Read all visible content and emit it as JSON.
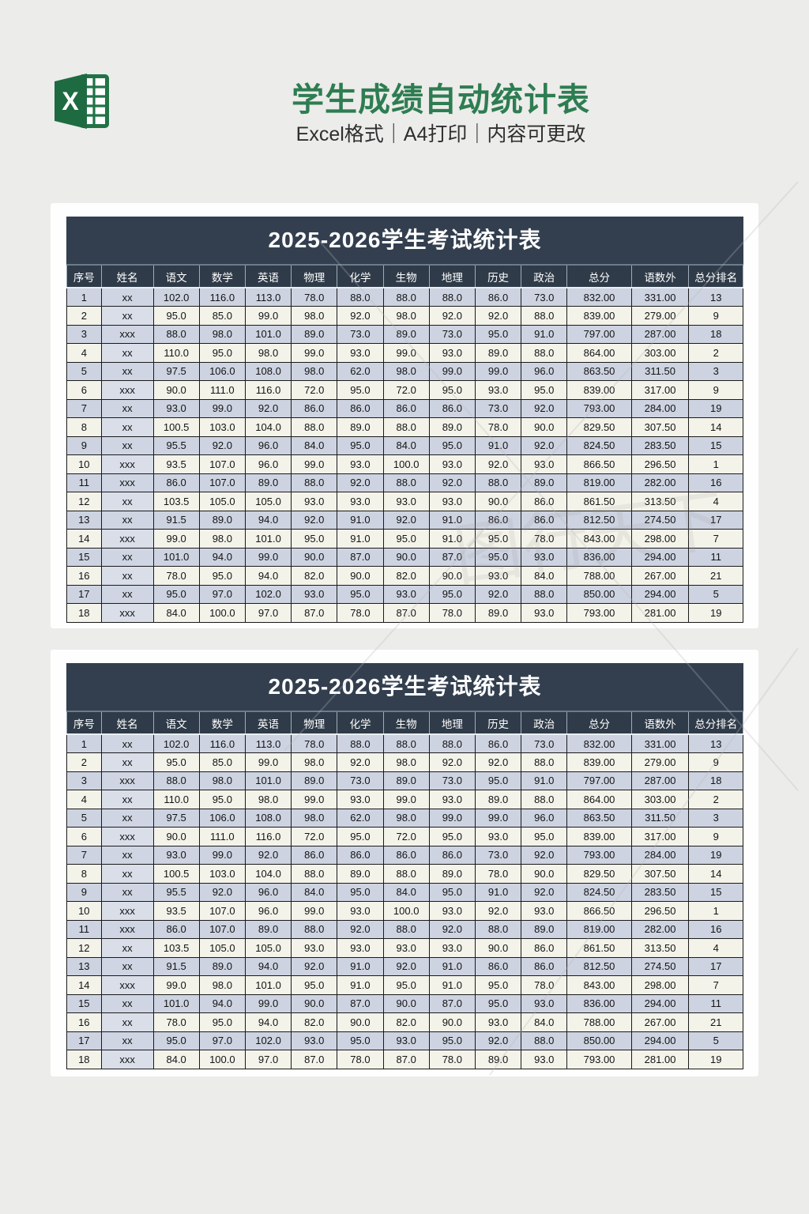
{
  "header": {
    "logo_letter": "X",
    "title": "学生成绩自动统计表",
    "subtitle": "Excel格式｜A4打印｜内容可更改"
  },
  "table": {
    "title": "2025-2026学生考试统计表",
    "columns": [
      "序号",
      "姓名",
      "语文",
      "数学",
      "英语",
      "物理",
      "化学",
      "生物",
      "地理",
      "历史",
      "政治",
      "总分",
      "语数外",
      "总分排名"
    ],
    "rows": [
      [
        "1",
        "xx",
        "102.0",
        "116.0",
        "113.0",
        "78.0",
        "88.0",
        "88.0",
        "88.0",
        "86.0",
        "73.0",
        "832.00",
        "331.00",
        "13"
      ],
      [
        "2",
        "xx",
        "95.0",
        "85.0",
        "99.0",
        "98.0",
        "92.0",
        "98.0",
        "92.0",
        "92.0",
        "88.0",
        "839.00",
        "279.00",
        "9"
      ],
      [
        "3",
        "xxx",
        "88.0",
        "98.0",
        "101.0",
        "89.0",
        "73.0",
        "89.0",
        "73.0",
        "95.0",
        "91.0",
        "797.00",
        "287.00",
        "18"
      ],
      [
        "4",
        "xx",
        "110.0",
        "95.0",
        "98.0",
        "99.0",
        "93.0",
        "99.0",
        "93.0",
        "89.0",
        "88.0",
        "864.00",
        "303.00",
        "2"
      ],
      [
        "5",
        "xx",
        "97.5",
        "106.0",
        "108.0",
        "98.0",
        "62.0",
        "98.0",
        "99.0",
        "99.0",
        "96.0",
        "863.50",
        "311.50",
        "3"
      ],
      [
        "6",
        "xxx",
        "90.0",
        "111.0",
        "116.0",
        "72.0",
        "95.0",
        "72.0",
        "95.0",
        "93.0",
        "95.0",
        "839.00",
        "317.00",
        "9"
      ],
      [
        "7",
        "xx",
        "93.0",
        "99.0",
        "92.0",
        "86.0",
        "86.0",
        "86.0",
        "86.0",
        "73.0",
        "92.0",
        "793.00",
        "284.00",
        "19"
      ],
      [
        "8",
        "xx",
        "100.5",
        "103.0",
        "104.0",
        "88.0",
        "89.0",
        "88.0",
        "89.0",
        "78.0",
        "90.0",
        "829.50",
        "307.50",
        "14"
      ],
      [
        "9",
        "xx",
        "95.5",
        "92.0",
        "96.0",
        "84.0",
        "95.0",
        "84.0",
        "95.0",
        "91.0",
        "92.0",
        "824.50",
        "283.50",
        "15"
      ],
      [
        "10",
        "xxx",
        "93.5",
        "107.0",
        "96.0",
        "99.0",
        "93.0",
        "100.0",
        "93.0",
        "92.0",
        "93.0",
        "866.50",
        "296.50",
        "1"
      ],
      [
        "11",
        "xxx",
        "86.0",
        "107.0",
        "89.0",
        "88.0",
        "92.0",
        "88.0",
        "92.0",
        "88.0",
        "89.0",
        "819.00",
        "282.00",
        "16"
      ],
      [
        "12",
        "xx",
        "103.5",
        "105.0",
        "105.0",
        "93.0",
        "93.0",
        "93.0",
        "93.0",
        "90.0",
        "86.0",
        "861.50",
        "313.50",
        "4"
      ],
      [
        "13",
        "xx",
        "91.5",
        "89.0",
        "94.0",
        "92.0",
        "91.0",
        "92.0",
        "91.0",
        "86.0",
        "86.0",
        "812.50",
        "274.50",
        "17"
      ],
      [
        "14",
        "xxx",
        "99.0",
        "98.0",
        "101.0",
        "95.0",
        "91.0",
        "95.0",
        "91.0",
        "95.0",
        "78.0",
        "843.00",
        "298.00",
        "7"
      ],
      [
        "15",
        "xx",
        "101.0",
        "94.0",
        "99.0",
        "90.0",
        "87.0",
        "90.0",
        "87.0",
        "95.0",
        "93.0",
        "836.00",
        "294.00",
        "11"
      ],
      [
        "16",
        "xx",
        "78.0",
        "95.0",
        "94.0",
        "82.0",
        "90.0",
        "82.0",
        "90.0",
        "93.0",
        "84.0",
        "788.00",
        "267.00",
        "21"
      ],
      [
        "17",
        "xx",
        "95.0",
        "97.0",
        "102.0",
        "93.0",
        "95.0",
        "93.0",
        "95.0",
        "92.0",
        "88.0",
        "850.00",
        "294.00",
        "5"
      ],
      [
        "18",
        "xxx",
        "84.0",
        "100.0",
        "97.0",
        "87.0",
        "78.0",
        "87.0",
        "78.0",
        "89.0",
        "93.0",
        "793.00",
        "281.00",
        "19"
      ]
    ]
  },
  "watermark": "图行天下",
  "colors": {
    "accent_green": "#2e7d52",
    "excel_green": "#217346",
    "table_title_bg": "#333f4f",
    "table_header_bg": "#2f3b49",
    "row_odd_bg": "#cdd3e1",
    "row_even_bg": "#f3f3ea",
    "name_col_even_bg": "#d9dee9",
    "page_bg": "#ececea",
    "card_bg": "#fefefe"
  }
}
